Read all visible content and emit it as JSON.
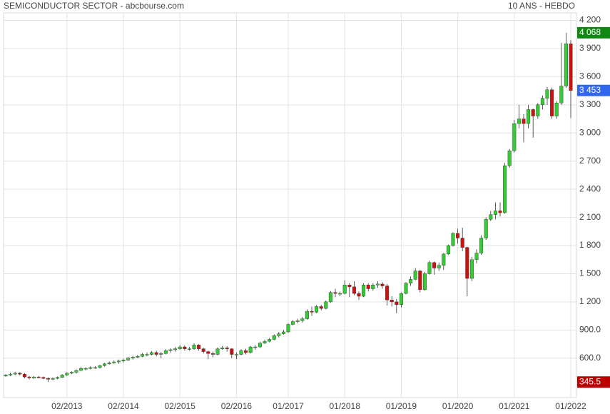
{
  "chart_data": {
    "type": "candlestick",
    "title": "SEMICONDUCTOR SECTOR - abcbourse.com",
    "subtitle": "10 ANS - HEBDO",
    "x": [
      "01/2012",
      "02/2012",
      "03/2012",
      "04/2012",
      "05/2012",
      "06/2012",
      "07/2012",
      "08/2012",
      "09/2012",
      "10/2012",
      "11/2012",
      "12/2012",
      "01/2013",
      "02/2013",
      "03/2013",
      "04/2013",
      "05/2013",
      "06/2013",
      "07/2013",
      "08/2013",
      "09/2013",
      "10/2013",
      "11/2013",
      "12/2013",
      "01/2014",
      "02/2014",
      "03/2014",
      "04/2014",
      "05/2014",
      "06/2014",
      "07/2014",
      "08/2014",
      "09/2014",
      "10/2014",
      "11/2014",
      "12/2014",
      "01/2015",
      "02/2015",
      "03/2015",
      "04/2015",
      "05/2015",
      "06/2015",
      "07/2015",
      "08/2015",
      "09/2015",
      "10/2015",
      "11/2015",
      "12/2015",
      "01/2016",
      "02/2016",
      "03/2016",
      "04/2016",
      "05/2016",
      "06/2016",
      "07/2016",
      "08/2016",
      "09/2016",
      "10/2016",
      "11/2016",
      "12/2016",
      "01/2017",
      "02/2017",
      "03/2017",
      "04/2017",
      "05/2017",
      "06/2017",
      "07/2017",
      "08/2017",
      "09/2017",
      "10/2017",
      "11/2017",
      "12/2017",
      "01/2018",
      "02/2018",
      "03/2018",
      "04/2018",
      "05/2018",
      "06/2018",
      "07/2018",
      "08/2018",
      "09/2018",
      "10/2018",
      "11/2018",
      "12/2018",
      "01/2019",
      "02/2019",
      "03/2019",
      "04/2019",
      "05/2019",
      "06/2019",
      "07/2019",
      "08/2019",
      "09/2019",
      "10/2019",
      "11/2019",
      "12/2019",
      "01/2020",
      "02/2020",
      "03/2020",
      "04/2020",
      "05/2020",
      "06/2020",
      "07/2020",
      "08/2020",
      "09/2020",
      "10/2020",
      "11/2020",
      "12/2020",
      "01/2021",
      "02/2021",
      "03/2021",
      "04/2021",
      "05/2021",
      "06/2021",
      "07/2021",
      "08/2021",
      "09/2021",
      "10/2021",
      "11/2021",
      "12/2021",
      "01/2022"
    ],
    "xticks": [
      "02/2013",
      "02/2014",
      "02/2015",
      "02/2016",
      "01/2017",
      "01/2018",
      "01/2019",
      "01/2020",
      "01/2021",
      "01/2022"
    ],
    "open": [
      410,
      420,
      430,
      440,
      430,
      400,
      390,
      400,
      395,
      385,
      375,
      385,
      395,
      420,
      440,
      450,
      470,
      490,
      490,
      500,
      500,
      520,
      540,
      550,
      560,
      570,
      580,
      600,
      610,
      620,
      640,
      640,
      660,
      640,
      650,
      680,
      690,
      700,
      720,
      700,
      700,
      740,
      700,
      670,
      650,
      640,
      700,
      710,
      700,
      640,
      640,
      680,
      660,
      720,
      720,
      760,
      780,
      800,
      840,
      860,
      880,
      960,
      990,
      1000,
      1020,
      1100,
      1090,
      1150,
      1130,
      1200,
      1300,
      1290,
      1290,
      1380,
      1360,
      1290,
      1260,
      1380,
      1340,
      1380,
      1390,
      1370,
      1220,
      1200,
      1170,
      1290,
      1400,
      1440,
      1530,
      1330,
      1500,
      1620,
      1560,
      1590,
      1710,
      1800,
      1930,
      1880,
      1780,
      1450,
      1650,
      1720,
      1880,
      2080,
      2130,
      2170,
      2150,
      2650,
      2810,
      3100,
      3150,
      3100,
      3250,
      3180,
      3300,
      3370,
      3460,
      3180,
      3320,
      3500,
      3950
    ],
    "high": [
      430,
      445,
      455,
      450,
      440,
      410,
      410,
      410,
      405,
      395,
      395,
      405,
      430,
      450,
      460,
      480,
      505,
      505,
      515,
      515,
      530,
      550,
      565,
      575,
      585,
      595,
      615,
      625,
      635,
      655,
      660,
      675,
      680,
      665,
      695,
      705,
      720,
      740,
      735,
      720,
      760,
      750,
      710,
      680,
      670,
      715,
      730,
      725,
      705,
      660,
      695,
      700,
      730,
      740,
      775,
      795,
      815,
      855,
      880,
      900,
      970,
      1005,
      1020,
      1040,
      1120,
      1150,
      1165,
      1170,
      1215,
      1315,
      1340,
      1310,
      1430,
      1400,
      1420,
      1310,
      1400,
      1400,
      1400,
      1420,
      1410,
      1390,
      1260,
      1230,
      1300,
      1410,
      1470,
      1560,
      1540,
      1520,
      1640,
      1630,
      1620,
      1720,
      1810,
      1940,
      1980,
      1990,
      1790,
      1680,
      1760,
      1910,
      2100,
      2170,
      2260,
      2260,
      2680,
      2830,
      3140,
      3300,
      3200,
      3300,
      3260,
      3320,
      3400,
      3490,
      3480,
      3340,
      3960,
      4068,
      3990
    ],
    "low": [
      400,
      410,
      420,
      415,
      385,
      375,
      380,
      385,
      375,
      345.5,
      365,
      375,
      390,
      410,
      430,
      435,
      460,
      470,
      480,
      485,
      490,
      510,
      530,
      540,
      540,
      555,
      570,
      585,
      600,
      610,
      620,
      630,
      620,
      600,
      640,
      660,
      670,
      690,
      680,
      680,
      690,
      680,
      650,
      590,
      610,
      630,
      690,
      670,
      600,
      590,
      630,
      640,
      650,
      690,
      710,
      750,
      770,
      790,
      820,
      850,
      870,
      950,
      970,
      980,
      1010,
      1050,
      1080,
      1110,
      1120,
      1190,
      1250,
      1260,
      1280,
      1250,
      1270,
      1220,
      1250,
      1310,
      1320,
      1350,
      1340,
      1160,
      1150,
      1080,
      1140,
      1280,
      1370,
      1430,
      1300,
      1320,
      1490,
      1490,
      1530,
      1540,
      1700,
      1790,
      1820,
      1740,
      1260,
      1420,
      1610,
      1700,
      1860,
      2060,
      2080,
      2110,
      2140,
      2630,
      2790,
      3050,
      2900,
      3050,
      2950,
      3150,
      3250,
      3300,
      3150,
      3150,
      3300,
      3480,
      3160
    ],
    "close": [
      420,
      430,
      440,
      430,
      400,
      390,
      400,
      395,
      385,
      375,
      385,
      395,
      420,
      440,
      450,
      470,
      490,
      490,
      500,
      500,
      520,
      540,
      550,
      560,
      570,
      580,
      600,
      610,
      620,
      640,
      640,
      660,
      640,
      650,
      680,
      690,
      700,
      720,
      700,
      700,
      740,
      700,
      670,
      650,
      640,
      700,
      710,
      700,
      640,
      640,
      680,
      660,
      720,
      720,
      760,
      780,
      800,
      840,
      860,
      880,
      960,
      990,
      1000,
      1020,
      1100,
      1090,
      1150,
      1130,
      1200,
      1300,
      1290,
      1290,
      1380,
      1360,
      1290,
      1260,
      1380,
      1340,
      1380,
      1390,
      1370,
      1220,
      1200,
      1170,
      1290,
      1400,
      1440,
      1530,
      1330,
      1500,
      1620,
      1560,
      1590,
      1710,
      1800,
      1930,
      1880,
      1780,
      1450,
      1650,
      1720,
      1880,
      2080,
      2130,
      2170,
      2150,
      2650,
      2810,
      3100,
      3150,
      3100,
      3250,
      3180,
      3300,
      3370,
      3460,
      3180,
      3320,
      3500,
      3950,
      3453
    ],
    "up_color": "#33cc33",
    "down_color": "#cc1111",
    "ylim": [
      180,
      4280
    ],
    "yticks": [
      {
        "value": 600,
        "label": "600.0"
      },
      {
        "value": 900,
        "label": "900.0"
      },
      {
        "value": 1200,
        "label": "1 200"
      },
      {
        "value": 1500,
        "label": "1 500"
      },
      {
        "value": 1800,
        "label": "1 800"
      },
      {
        "value": 2100,
        "label": "2 100"
      },
      {
        "value": 2400,
        "label": "2 400"
      },
      {
        "value": 2700,
        "label": "2 700"
      },
      {
        "value": 3000,
        "label": "3 000"
      },
      {
        "value": 3300,
        "label": "3 300"
      },
      {
        "value": 3600,
        "label": "3 600"
      },
      {
        "value": 3900,
        "label": "3 900"
      },
      {
        "value": 4200,
        "label": "4 200"
      }
    ],
    "grid": true,
    "price_tags": [
      {
        "value": 4068,
        "label": "4 068",
        "color": "#118811"
      },
      {
        "value": 3453,
        "label": "3 453",
        "color": "#3366ee"
      },
      {
        "value": 345.5,
        "label": "345.5",
        "color": "#bb0000"
      }
    ]
  }
}
